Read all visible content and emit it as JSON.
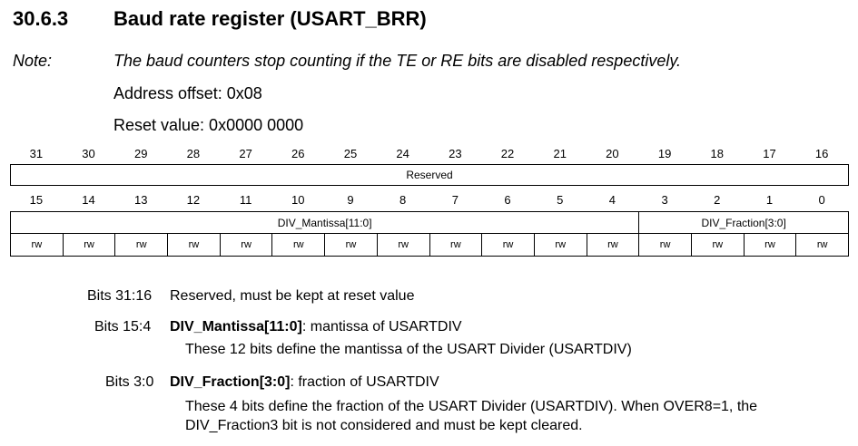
{
  "section": {
    "number": "30.6.3",
    "title": "Baud rate register (USART_BRR)"
  },
  "note": {
    "label": "Note:",
    "text": "The baud counters stop counting if the TE or RE bits are disabled respectively."
  },
  "address_offset": "Address offset: 0x08",
  "reset_value": "Reset value: 0x0000 0000",
  "register": {
    "upper_bits": [
      "31",
      "30",
      "29",
      "28",
      "27",
      "26",
      "25",
      "24",
      "23",
      "22",
      "21",
      "20",
      "19",
      "18",
      "17",
      "16"
    ],
    "upper_field": "Reserved",
    "lower_bits": [
      "15",
      "14",
      "13",
      "12",
      "11",
      "10",
      "9",
      "8",
      "7",
      "6",
      "5",
      "4",
      "3",
      "2",
      "1",
      "0"
    ],
    "lower_fields": [
      {
        "name": "DIV_Mantissa[11:0]",
        "span": 12
      },
      {
        "name": "DIV_Fraction[3:0]",
        "span": 4
      }
    ],
    "access": [
      "rw",
      "rw",
      "rw",
      "rw",
      "rw",
      "rw",
      "rw",
      "rw",
      "rw",
      "rw",
      "rw",
      "rw",
      "rw",
      "rw",
      "rw",
      "rw"
    ]
  },
  "descriptions": {
    "bits_31_16": {
      "label": "Bits 31:16",
      "text": "Reserved, must be kept at reset value"
    },
    "bits_15_4": {
      "label": "Bits 15:4",
      "name": "DIV_Mantissa[11:0]",
      "summary": ": mantissa of USARTDIV",
      "body": "These 12 bits define the mantissa of the USART Divider (USARTDIV)"
    },
    "bits_3_0": {
      "label": "Bits 3:0",
      "name": "DIV_Fraction[3:0]",
      "summary": ": fraction of USARTDIV",
      "body": "These 4 bits define the fraction of the USART Divider (USARTDIV). When OVER8=1, the DIV_Fraction3 bit is not considered and must be kept cleared."
    }
  }
}
